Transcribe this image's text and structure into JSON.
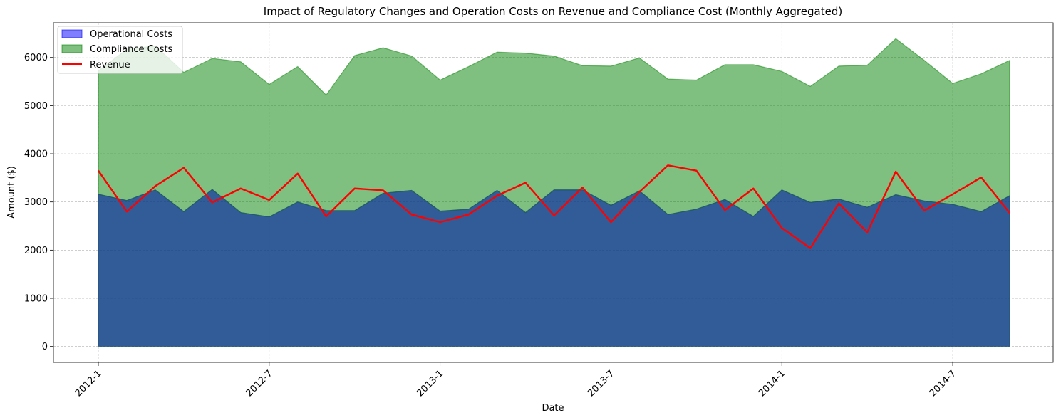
{
  "chart_data": {
    "type": "area",
    "title": "Impact of Regulatory Changes and Operation Costs on Revenue and Compliance Cost (Monthly Aggregated)",
    "xlabel": "Date",
    "ylabel": "Amount ($)",
    "ylim": [
      -330,
      6720
    ],
    "yticks": [
      0,
      1000,
      2000,
      3000,
      4000,
      5000,
      6000
    ],
    "xtick_labels": [
      "2012-1",
      "2012-7",
      "2013-1",
      "2013-7",
      "2014-1",
      "2014-7"
    ],
    "xtick_month_index": [
      0,
      6,
      12,
      18,
      24,
      30
    ],
    "grid": true,
    "legend_position": "top-left",
    "x": [
      "2012-1",
      "2012-2",
      "2012-3",
      "2012-4",
      "2012-5",
      "2012-6",
      "2012-7",
      "2012-8",
      "2012-9",
      "2012-10",
      "2012-11",
      "2012-12",
      "2013-1",
      "2013-2",
      "2013-3",
      "2013-4",
      "2013-5",
      "2013-6",
      "2013-7",
      "2013-8",
      "2013-9",
      "2013-10",
      "2013-11",
      "2013-12",
      "2014-1",
      "2014-2",
      "2014-3",
      "2014-4",
      "2014-5",
      "2014-6",
      "2014-7",
      "2014-8",
      "2014-9"
    ],
    "series": [
      {
        "name": "Operational Costs",
        "kind": "area",
        "color": "#0000ff",
        "alpha": 0.5,
        "values": [
          3160,
          3030,
          3250,
          2800,
          3260,
          2780,
          2690,
          3000,
          2820,
          2820,
          3180,
          3240,
          2810,
          2850,
          3240,
          2780,
          3250,
          3250,
          2930,
          3230,
          2740,
          2850,
          3050,
          2700,
          3250,
          2990,
          3060,
          2890,
          3150,
          3020,
          2950,
          2800,
          3130
        ]
      },
      {
        "name": "Compliance Costs",
        "kind": "stacked-area",
        "color": "#008000",
        "alpha": 0.5,
        "values": [
          2560,
          3140,
          2990,
          2890,
          2720,
          3130,
          2750,
          2810,
          2400,
          3220,
          3020,
          2790,
          2720,
          2960,
          2870,
          3310,
          2780,
          2580,
          2890,
          2760,
          2810,
          2680,
          2800,
          3150,
          2460,
          2410,
          2760,
          2950,
          3240,
          2920,
          2510,
          2860,
          2810
        ]
      },
      {
        "name": "Revenue",
        "kind": "line",
        "color": "#ff0000",
        "values": [
          3650,
          2800,
          3330,
          3710,
          2990,
          3280,
          3040,
          3590,
          2700,
          3280,
          3240,
          2740,
          2580,
          2740,
          3130,
          3400,
          2720,
          3300,
          2580,
          3210,
          3760,
          3650,
          2830,
          3280,
          2460,
          2040,
          2970,
          2370,
          3630,
          2820,
          3160,
          3510,
          2770
        ]
      }
    ]
  },
  "colors": {
    "operational_fill": "#0000ff",
    "compliance_fill": "#008000",
    "revenue_line": "#ff0000",
    "axis": "#000000",
    "grid": "#b0b0b0"
  }
}
